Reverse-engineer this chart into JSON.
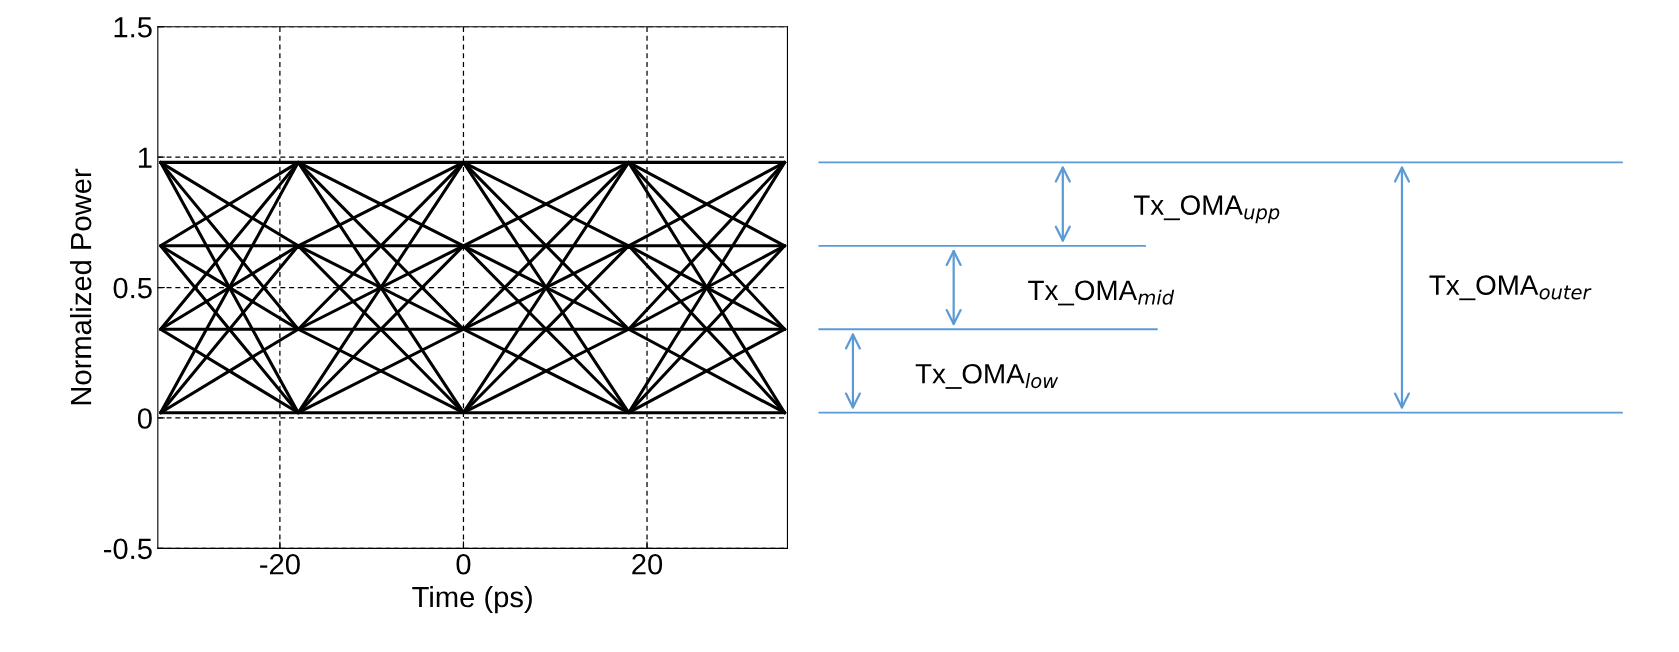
{
  "chart_data": {
    "type": "line",
    "xlabel": "Time (ps)",
    "ylabel": "Normalized Power",
    "x": [
      -33,
      -18,
      0,
      18,
      35
    ],
    "xlim": [
      -33.3,
      35.3
    ],
    "ylim": [
      -0.5,
      1.5
    ],
    "xticks": [
      -20,
      0,
      20
    ],
    "yticks": [
      -0.5,
      0,
      0.5,
      1,
      1.5
    ],
    "grid": true,
    "legend": false,
    "marker": "none",
    "line_style": "solid",
    "annotations": [
      "Tx_OMA$_{upp}$",
      "Tx_OMA$_{mid}$",
      "Tx_OMA$_{low}$",
      "Tx_OMA$_{outer}$"
    ],
    "series": [
      {
        "color": "#000000",
        "values": [
          0.02,
          0.02,
          0.02,
          0.02,
          0.02
        ]
      },
      {
        "color": "#000000",
        "values": [
          0.02,
          0.34,
          0.02,
          0.34,
          0.02
        ]
      },
      {
        "color": "#000000",
        "values": [
          0.02,
          0.66,
          0.02,
          0.66,
          0.02
        ]
      },
      {
        "color": "#000000",
        "values": [
          0.02,
          0.98,
          0.02,
          0.98,
          0.02
        ]
      },
      {
        "color": "#000000",
        "values": [
          0.34,
          0.02,
          0.34,
          0.02,
          0.34
        ]
      },
      {
        "color": "#000000",
        "values": [
          0.34,
          0.34,
          0.34,
          0.34,
          0.34
        ]
      },
      {
        "color": "#000000",
        "values": [
          0.34,
          0.66,
          0.34,
          0.66,
          0.34
        ]
      },
      {
        "color": "#000000",
        "values": [
          0.34,
          0.98,
          0.34,
          0.98,
          0.34
        ]
      },
      {
        "color": "#000000",
        "values": [
          0.66,
          0.02,
          0.66,
          0.02,
          0.66
        ]
      },
      {
        "color": "#000000",
        "values": [
          0.66,
          0.34,
          0.66,
          0.34,
          0.66
        ]
      },
      {
        "color": "#000000",
        "values": [
          0.66,
          0.66,
          0.66,
          0.66,
          0.66
        ]
      },
      {
        "color": "#000000",
        "values": [
          0.66,
          0.98,
          0.66,
          0.98,
          0.66
        ]
      },
      {
        "color": "#000000",
        "values": [
          0.98,
          0.02,
          0.98,
          0.02,
          0.98
        ]
      },
      {
        "color": "#000000",
        "values": [
          0.98,
          0.34,
          0.98,
          0.34,
          0.98
        ]
      },
      {
        "color": "#000000",
        "values": [
          0.98,
          0.66,
          0.98,
          0.66,
          0.98
        ]
      },
      {
        "color": "#000000",
        "values": [
          0.98,
          0.98,
          0.98,
          0.98,
          0.98
        ]
      }
    ]
  }
}
